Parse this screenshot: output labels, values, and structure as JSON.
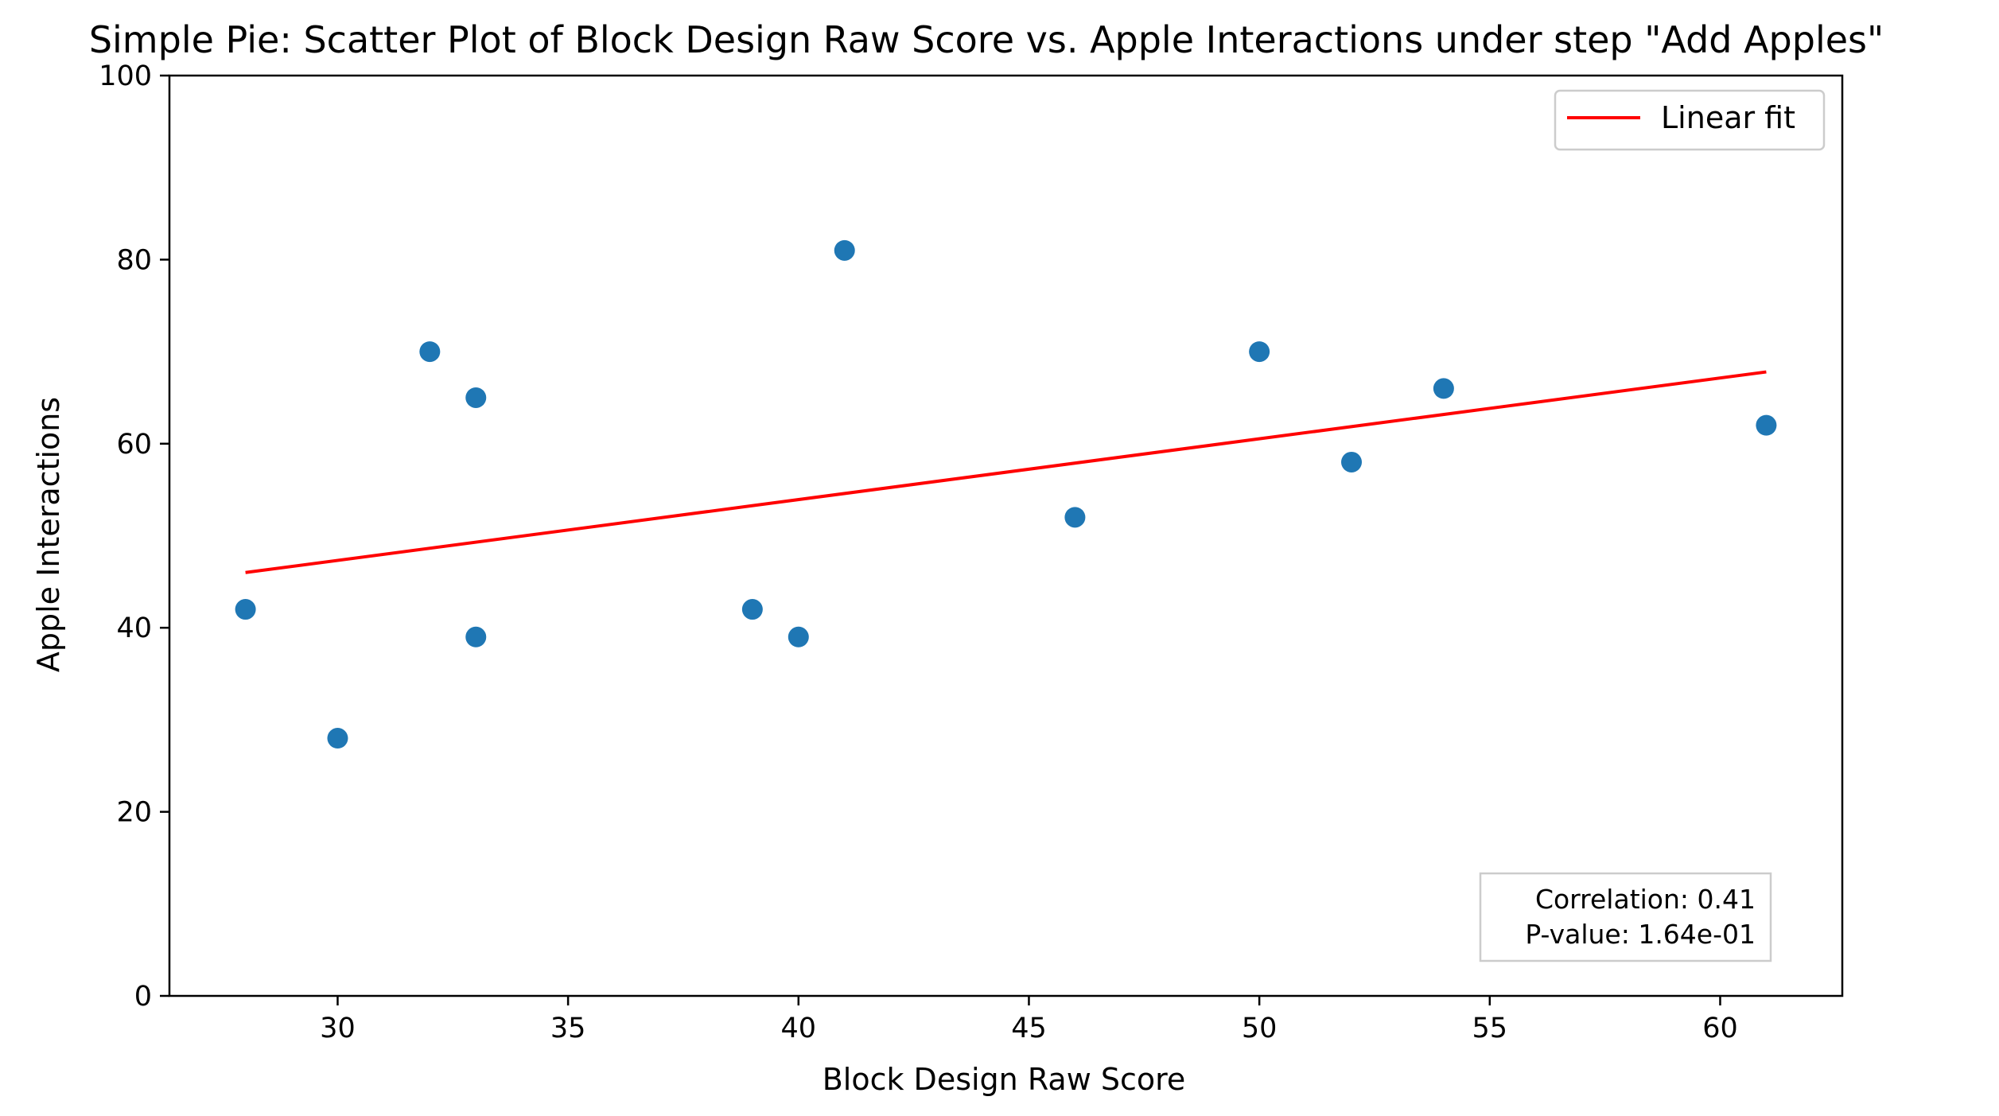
{
  "chart_data": {
    "type": "scatter",
    "title": "Simple Pie: Scatter Plot of Block Design Raw Score vs. Apple Interactions under step \"Add Apples\"",
    "xlabel": "Block Design Raw Score",
    "ylabel": "Apple Interactions",
    "xlim": [
      26.35,
      62.65
    ],
    "ylim": [
      0,
      100
    ],
    "xticks": [
      30,
      35,
      40,
      45,
      50,
      55,
      60
    ],
    "yticks": [
      0,
      20,
      40,
      60,
      80,
      100
    ],
    "grid": false,
    "series": [
      {
        "kind": "points",
        "color": "#1f77b4",
        "x": [
          28,
          30,
          32,
          33,
          33,
          39,
          40,
          41,
          46,
          50,
          52,
          54,
          61
        ],
        "y": [
          42,
          28,
          70,
          65,
          39,
          42,
          39,
          81,
          52,
          70,
          58,
          66,
          62
        ]
      },
      {
        "kind": "line",
        "name": "Linear fit",
        "color": "#ff0000",
        "x": [
          28,
          61
        ],
        "y": [
          46.0,
          67.8
        ]
      }
    ],
    "legend": {
      "placement": "top-right",
      "entries": [
        "Linear fit"
      ]
    },
    "annotation": {
      "placement": "bottom-right",
      "lines": [
        "Correlation: 0.41",
        "P-value: 1.64e-01"
      ]
    }
  }
}
